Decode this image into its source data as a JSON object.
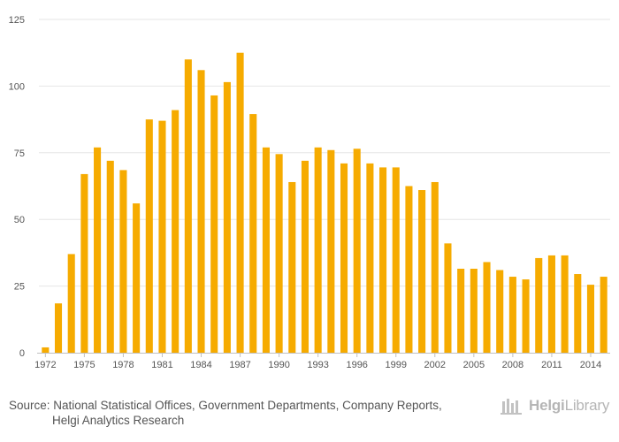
{
  "chart_data": {
    "type": "bar",
    "title": "",
    "xlabel": "",
    "ylabel": "",
    "ylim": [
      0,
      125
    ],
    "yticks": [
      0,
      25,
      50,
      75,
      100,
      125
    ],
    "x_tick_labels": [
      "1972",
      "1975",
      "1978",
      "1981",
      "1984",
      "1987",
      "1990",
      "1993",
      "1996",
      "1999",
      "2002",
      "2005",
      "2008",
      "2011",
      "2014"
    ],
    "categories": [
      "1972",
      "1973",
      "1974",
      "1975",
      "1976",
      "1977",
      "1978",
      "1979",
      "1980",
      "1981",
      "1982",
      "1983",
      "1984",
      "1985",
      "1986",
      "1987",
      "1988",
      "1989",
      "1990",
      "1991",
      "1992",
      "1993",
      "1994",
      "1995",
      "1996",
      "1997",
      "1998",
      "1999",
      "2000",
      "2001",
      "2002",
      "2003",
      "2004",
      "2005",
      "2006",
      "2007",
      "2008",
      "2009",
      "2010",
      "2011",
      "2012",
      "2013",
      "2014",
      "2015"
    ],
    "values": [
      2,
      18.5,
      37,
      67,
      77,
      72,
      68.5,
      56,
      87.5,
      87,
      91,
      110,
      106,
      96.5,
      101.5,
      112.5,
      89.5,
      77,
      74.5,
      64,
      72,
      77,
      76,
      71,
      76.5,
      71,
      69.5,
      69.5,
      62.5,
      61,
      64,
      41,
      31.5,
      31.5,
      34,
      31,
      28.5,
      27.5,
      35.5,
      36.5,
      36.5,
      29.5,
      25.5,
      28.5
    ],
    "bar_color": "#f6ab00",
    "grid": true
  },
  "source": {
    "line1": "Source: National Statistical Offices, Government Departments, Company Reports,",
    "line2": "Helgi Analytics Research"
  },
  "logo": {
    "text_bold": "Helgi",
    "text_regular": "Library",
    "color": "#b5b5b5"
  }
}
